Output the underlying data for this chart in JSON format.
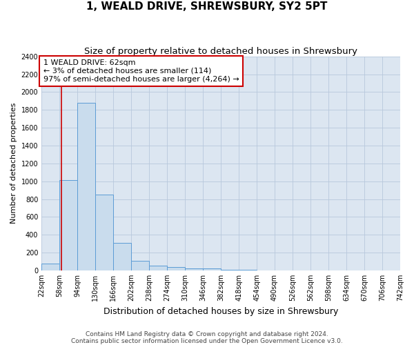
{
  "title": "1, WEALD DRIVE, SHREWSBURY, SY2 5PT",
  "subtitle": "Size of property relative to detached houses in Shrewsbury",
  "xlabel": "Distribution of detached houses by size in Shrewsbury",
  "ylabel": "Number of detached properties",
  "footer_line1": "Contains HM Land Registry data © Crown copyright and database right 2024.",
  "footer_line2": "Contains public sector information licensed under the Open Government Licence v3.0.",
  "property_label": "1 WEALD DRIVE: 62sqm",
  "annotation_line2": "← 3% of detached houses are smaller (114)",
  "annotation_line3": "97% of semi-detached houses are larger (4,264) →",
  "bar_left_edges": [
    22,
    58,
    94,
    130,
    166,
    202,
    238,
    274,
    310,
    346,
    382,
    418,
    454,
    490,
    526,
    562,
    598,
    634,
    670,
    706
  ],
  "bar_heights": [
    80,
    1010,
    1880,
    850,
    310,
    110,
    50,
    40,
    25,
    20,
    5,
    5,
    2,
    0,
    0,
    0,
    0,
    0,
    0,
    0
  ],
  "bin_width": 36,
  "bar_color": "#c9dced",
  "bar_edge_color": "#5b9bd5",
  "vline_color": "#cc0000",
  "vline_x": 62,
  "annotation_box_color": "#ffffff",
  "annotation_box_edge": "#cc0000",
  "ylim": [
    0,
    2400
  ],
  "yticks": [
    0,
    200,
    400,
    600,
    800,
    1000,
    1200,
    1400,
    1600,
    1800,
    2000,
    2200,
    2400
  ],
  "xlim": [
    22,
    742
  ],
  "grid_color": "#b8c8dc",
  "bg_color": "#dce6f1",
  "title_fontsize": 11,
  "subtitle_fontsize": 9.5,
  "xlabel_fontsize": 9,
  "ylabel_fontsize": 8,
  "tick_fontsize": 7,
  "annotation_fontsize": 8,
  "footer_fontsize": 6.5
}
